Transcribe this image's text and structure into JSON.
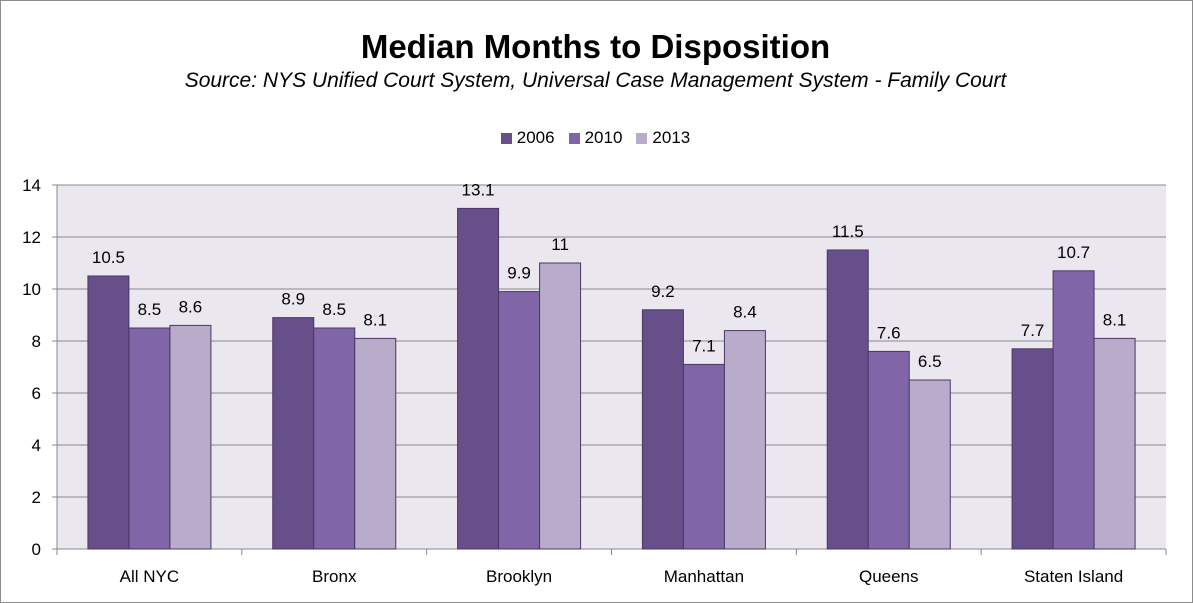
{
  "chart_data": {
    "type": "bar",
    "title": "Median Months to Disposition",
    "subtitle": "Source: NYS Unified Court System, Universal Case Management System - Family Court",
    "categories": [
      "All NYC",
      "Bronx",
      "Brooklyn",
      "Manhattan",
      "Queens",
      "Staten Island"
    ],
    "series": [
      {
        "name": "2006",
        "values": [
          10.5,
          8.9,
          13.1,
          9.2,
          11.5,
          7.7
        ],
        "labels": [
          "10.5",
          "8.9",
          "13.1",
          "9.2",
          "11.5",
          "7.7"
        ],
        "color": "#674f8a"
      },
      {
        "name": "2010",
        "values": [
          8.5,
          8.5,
          9.9,
          7.1,
          7.6,
          10.7
        ],
        "labels": [
          "8.5",
          "8.5",
          "9.9",
          "7.1",
          "7.6",
          "10.7"
        ],
        "color": "#8066a6"
      },
      {
        "name": "2013",
        "values": [
          8.6,
          8.1,
          11,
          8.4,
          6.5,
          8.1
        ],
        "labels": [
          "8.6",
          "8.1",
          "11",
          "8.4",
          "6.5",
          "8.1"
        ],
        "color": "#b8acca"
      }
    ],
    "ylim": [
      0,
      14
    ],
    "yticks": [
      "0",
      "2",
      "4",
      "6",
      "8",
      "10",
      "12",
      "14"
    ],
    "xlabel": "",
    "ylabel": "",
    "grid": true,
    "legend_position": "top",
    "plot_background": "#ebe7ee"
  }
}
